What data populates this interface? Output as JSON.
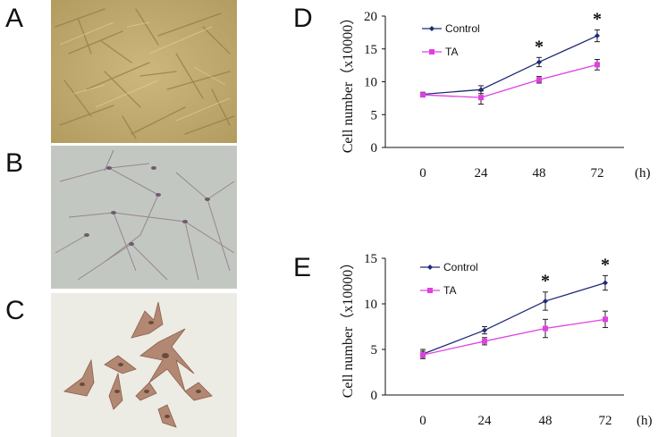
{
  "panels": {
    "A": {
      "letter": "A"
    },
    "B": {
      "letter": "B"
    },
    "C": {
      "letter": "C"
    },
    "D": {
      "letter": "D"
    },
    "E": {
      "letter": "E"
    }
  },
  "colors": {
    "control": "#1f2a7a",
    "ta": "#e040e0",
    "photoA": "#c4ad72",
    "photoB": "#c2c6c0",
    "photoC": "#ecebe4"
  },
  "chart_data": [
    {
      "id": "D",
      "type": "line",
      "title": "",
      "xlabel": "",
      "x_unit": "(h)",
      "ylabel": "Cell number（x10000）",
      "categories": [
        "0",
        "24",
        "48",
        "72"
      ],
      "ylim": [
        0,
        20
      ],
      "yticks": [
        0,
        5,
        10,
        15,
        20
      ],
      "series": [
        {
          "name": "Control",
          "values": [
            8.1,
            8.8,
            13.0,
            17.0
          ],
          "errors": [
            0.3,
            0.6,
            0.7,
            0.9
          ],
          "marker": "diamond"
        },
        {
          "name": "TA",
          "values": [
            8.0,
            7.6,
            10.3,
            12.6
          ],
          "errors": [
            0.3,
            1.0,
            0.5,
            0.8
          ],
          "marker": "square"
        }
      ],
      "annotations": [
        {
          "x": "48",
          "text": "*"
        },
        {
          "x": "72",
          "text": "*"
        }
      ]
    },
    {
      "id": "E",
      "type": "line",
      "title": "",
      "xlabel": "",
      "x_unit": "(h)",
      "ylabel": "Cell number（x10000）",
      "categories": [
        "0",
        "24",
        "48",
        "72"
      ],
      "ylim": [
        0,
        15
      ],
      "yticks": [
        0,
        5,
        10,
        15
      ],
      "series": [
        {
          "name": "Control",
          "values": [
            4.5,
            7.1,
            10.3,
            12.3
          ],
          "errors": [
            0.5,
            0.4,
            1.0,
            0.8
          ],
          "marker": "diamond"
        },
        {
          "name": "TA",
          "values": [
            4.4,
            5.9,
            7.3,
            8.3
          ],
          "errors": [
            0.4,
            0.4,
            1.0,
            0.9
          ],
          "marker": "square"
        }
      ],
      "annotations": [
        {
          "x": "48",
          "text": "*"
        },
        {
          "x": "72",
          "text": "*"
        }
      ]
    }
  ]
}
